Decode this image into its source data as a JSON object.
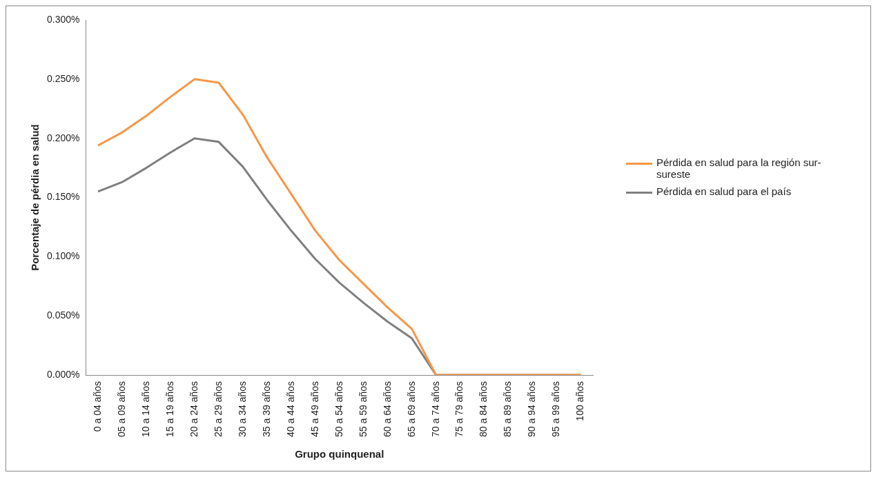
{
  "chart_data": {
    "type": "line",
    "xlabel": "Grupo quinquenal",
    "ylabel": "Porcentaje de pérdia en salud",
    "categories": [
      "0 a 04 años",
      "05 a 09 años",
      "10 a 14 años",
      "15 a 19 años",
      "20 a 24 años",
      "25 a 29 años",
      "30 a 34 años",
      "35 a 39 años",
      "40 a 44 años",
      "45 a 49 años",
      "50 a 54 años",
      "55 a 59 años",
      "60 a 64 años",
      "65 a 69 años",
      "70 a 74 años",
      "75 a 79 años",
      "80 a 84 años",
      "85 a 89 años",
      "90 a 94 años",
      "95 a 99 años",
      "100 años"
    ],
    "series": [
      {
        "name": "Pérdida en salud para la región sur-sureste",
        "color": "#f79646",
        "values": [
          0.194,
          0.205,
          0.219,
          0.235,
          0.25,
          0.247,
          0.22,
          0.184,
          0.153,
          0.122,
          0.097,
          0.077,
          0.057,
          0.039,
          0,
          0,
          0,
          0,
          0,
          0,
          0
        ]
      },
      {
        "name": "Pérdida en salud para el país",
        "color": "#7f7f7f",
        "values": [
          0.155,
          0.163,
          0.175,
          0.188,
          0.2,
          0.197,
          0.176,
          0.148,
          0.122,
          0.098,
          0.078,
          0.061,
          0.045,
          0.031,
          0,
          0,
          0,
          0,
          0,
          0,
          0
        ]
      }
    ],
    "ylim": [
      0,
      0.3
    ],
    "yticks": [
      {
        "value": 0,
        "label": "0.000%"
      },
      {
        "value": 0.05,
        "label": "0.050%"
      },
      {
        "value": 0.1,
        "label": "0.100%"
      },
      {
        "value": 0.15,
        "label": "0.150%"
      },
      {
        "value": 0.2,
        "label": "0.200%"
      },
      {
        "value": 0.25,
        "label": "0.250%"
      },
      {
        "value": 0.3,
        "label": "0.300%"
      }
    ],
    "grid": false,
    "legend": "right",
    "marker": "none",
    "line_style": "solid"
  }
}
